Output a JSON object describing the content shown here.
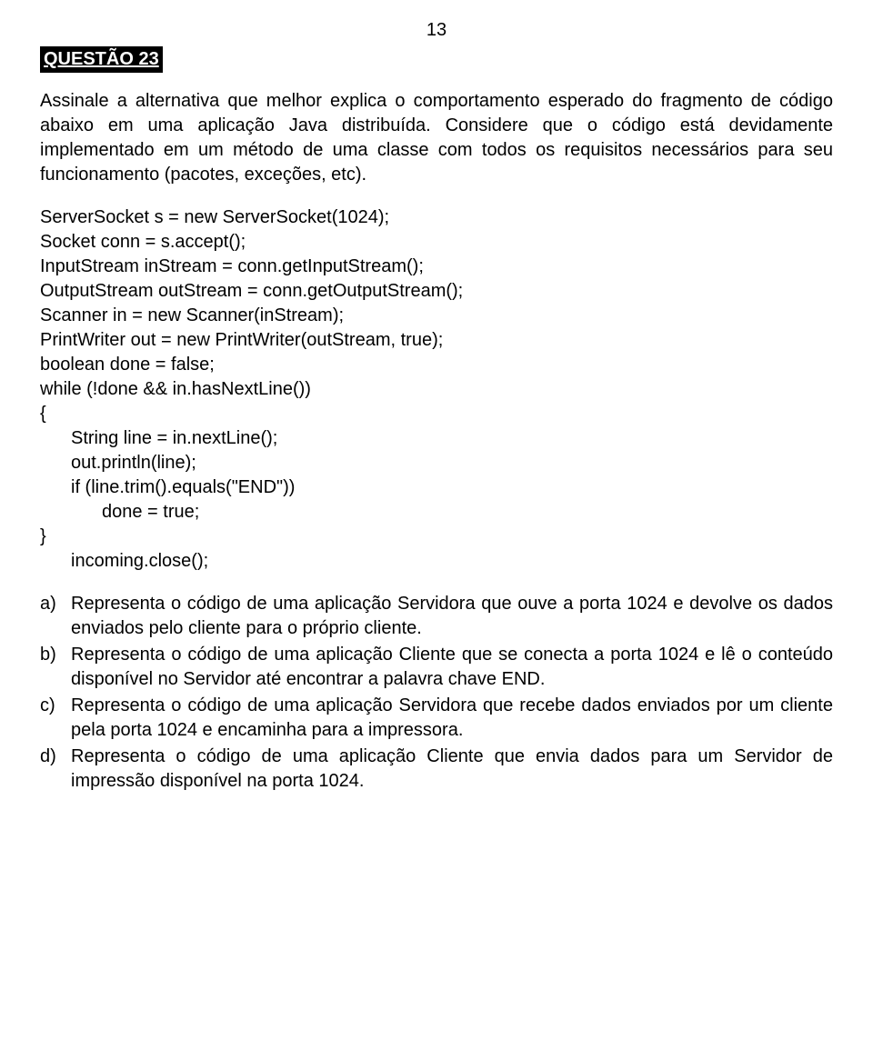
{
  "page_number": "13",
  "question_label": "QUESTÃO 23",
  "intro_paragraph": "Assinale a alternativa que melhor explica o comportamento esperado do fragmento de código abaixo em uma aplicação Java distribuída. Considere que o código está devidamente implementado em um método de uma classe com todos os requisitos necessários para seu funcionamento (pacotes, exceções, etc).",
  "code": {
    "l1": "ServerSocket s = new ServerSocket(1024);",
    "l2": "Socket conn = s.accept();",
    "l3": "InputStream inStream = conn.getInputStream();",
    "l4": "OutputStream outStream = conn.getOutputStream();",
    "l5": "Scanner in = new Scanner(inStream);",
    "l6": "PrintWriter out = new PrintWriter(outStream, true);",
    "l7": "boolean done = false;",
    "l8": "while (!done && in.hasNextLine())",
    "l9": "{",
    "l10": "String line = in.nextLine();",
    "l11": "out.println(line);",
    "l12": "if (line.trim().equals(\"END\"))",
    "l13": "done = true;",
    "l14": "}",
    "l15": "incoming.close();"
  },
  "options": {
    "a": {
      "letter": "a)",
      "text": "Representa o código de uma aplicação Servidora que ouve a porta 1024 e devolve os dados enviados pelo cliente para o próprio cliente."
    },
    "b": {
      "letter": "b)",
      "text": "Representa o código de uma aplicação Cliente que se conecta a porta 1024 e lê o conteúdo disponível no Servidor até encontrar a palavra chave END."
    },
    "c": {
      "letter": "c)",
      "text": "Representa o código de uma aplicação Servidora que recebe dados enviados por um cliente pela porta 1024 e encaminha para a impressora."
    },
    "d": {
      "letter": "d)",
      "text": "Representa o código de uma aplicação Cliente que envia dados para um Servidor de impressão disponível na porta 1024."
    }
  },
  "colors": {
    "background": "#ffffff",
    "text": "#000000",
    "label_bg": "#000000",
    "label_fg": "#ffffff"
  },
  "typography": {
    "base_font_size_pt": 15,
    "font_family": "Verdana",
    "line_height": 1.35
  }
}
